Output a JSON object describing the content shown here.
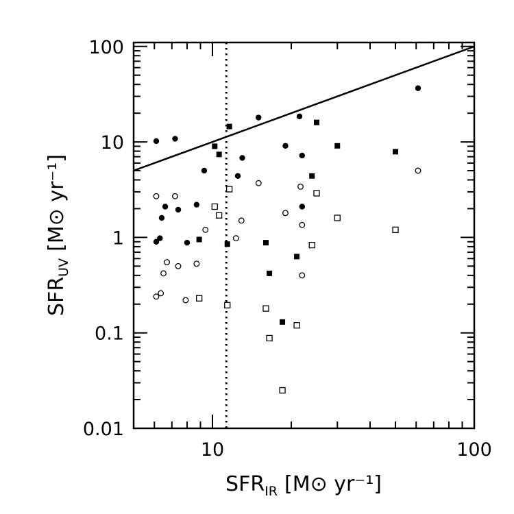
{
  "chart_data": {
    "type": "scatter",
    "xlabel": "SFR",
    "xlabel_sub": "IR",
    "xlabel_units": "[M⊙ yr⁻¹]",
    "ylabel": "SFR",
    "ylabel_sub": "UV",
    "ylabel_units": "[M⊙ yr⁻¹]",
    "xscale": "log",
    "yscale": "log",
    "xlim": [
      5,
      100
    ],
    "ylim": [
      0.01,
      110
    ],
    "x_ticks": [
      {
        "value": 10,
        "label": "10"
      },
      {
        "value": 100,
        "label": "100"
      }
    ],
    "y_ticks": [
      {
        "value": 0.01,
        "label": "0.01"
      },
      {
        "value": 0.1,
        "label": "0.1"
      },
      {
        "value": 1,
        "label": "1"
      },
      {
        "value": 10,
        "label": "10"
      },
      {
        "value": 100,
        "label": "100"
      }
    ],
    "reference_lines": [
      {
        "kind": "one-to-one",
        "style": "solid",
        "from": [
          5,
          5
        ],
        "to": [
          100,
          100
        ]
      },
      {
        "kind": "vertical",
        "style": "dotted",
        "x": 11.3
      }
    ],
    "series": [
      {
        "marker": "filled-circle",
        "points": [
          [
            6.1,
            10.2
          ],
          [
            7.2,
            10.8
          ],
          [
            9.3,
            5.0
          ],
          [
            15.0,
            18.0
          ],
          [
            21.5,
            18.5
          ],
          [
            19.0,
            9.1
          ],
          [
            22.0,
            7.2
          ],
          [
            13.0,
            6.8
          ],
          [
            12.5,
            4.4
          ],
          [
            61.0,
            36.5
          ],
          [
            6.6,
            2.1
          ],
          [
            7.4,
            1.95
          ],
          [
            6.4,
            1.6
          ],
          [
            8.7,
            2.2
          ],
          [
            6.1,
            0.9
          ],
          [
            6.3,
            0.98
          ],
          [
            8.0,
            0.88
          ],
          [
            22.0,
            2.1
          ]
        ]
      },
      {
        "marker": "filled-square",
        "points": [
          [
            11.6,
            14.5
          ],
          [
            10.2,
            9.0
          ],
          [
            10.6,
            7.4
          ],
          [
            25.0,
            16.0
          ],
          [
            30.0,
            9.1
          ],
          [
            50.0,
            7.9
          ],
          [
            24.0,
            4.4
          ],
          [
            8.9,
            0.95
          ],
          [
            11.4,
            0.85
          ],
          [
            16.0,
            0.88
          ],
          [
            16.5,
            0.42
          ],
          [
            21.0,
            0.63
          ],
          [
            18.5,
            0.13
          ]
        ]
      },
      {
        "marker": "open-circle",
        "points": [
          [
            6.1,
            2.7
          ],
          [
            7.2,
            2.7
          ],
          [
            9.4,
            1.2
          ],
          [
            12.3,
            0.98
          ],
          [
            12.9,
            1.5
          ],
          [
            15.0,
            3.7
          ],
          [
            19.0,
            1.8
          ],
          [
            21.7,
            3.4
          ],
          [
            22.0,
            1.35
          ],
          [
            61.0,
            5.0
          ],
          [
            6.7,
            0.55
          ],
          [
            7.4,
            0.5
          ],
          [
            8.7,
            0.53
          ],
          [
            6.5,
            0.42
          ],
          [
            6.1,
            0.24
          ],
          [
            6.35,
            0.26
          ],
          [
            7.9,
            0.22
          ],
          [
            22.0,
            0.4
          ]
        ]
      },
      {
        "marker": "open-square",
        "points": [
          [
            11.6,
            3.2
          ],
          [
            10.2,
            2.1
          ],
          [
            10.6,
            1.7
          ],
          [
            25.0,
            2.9
          ],
          [
            30.0,
            1.6
          ],
          [
            50.0,
            1.2
          ],
          [
            24.0,
            0.83
          ],
          [
            8.9,
            0.23
          ],
          [
            11.4,
            0.195
          ],
          [
            16.0,
            0.18
          ],
          [
            16.5,
            0.088
          ],
          [
            21.0,
            0.12
          ],
          [
            18.5,
            0.025
          ]
        ]
      }
    ]
  }
}
